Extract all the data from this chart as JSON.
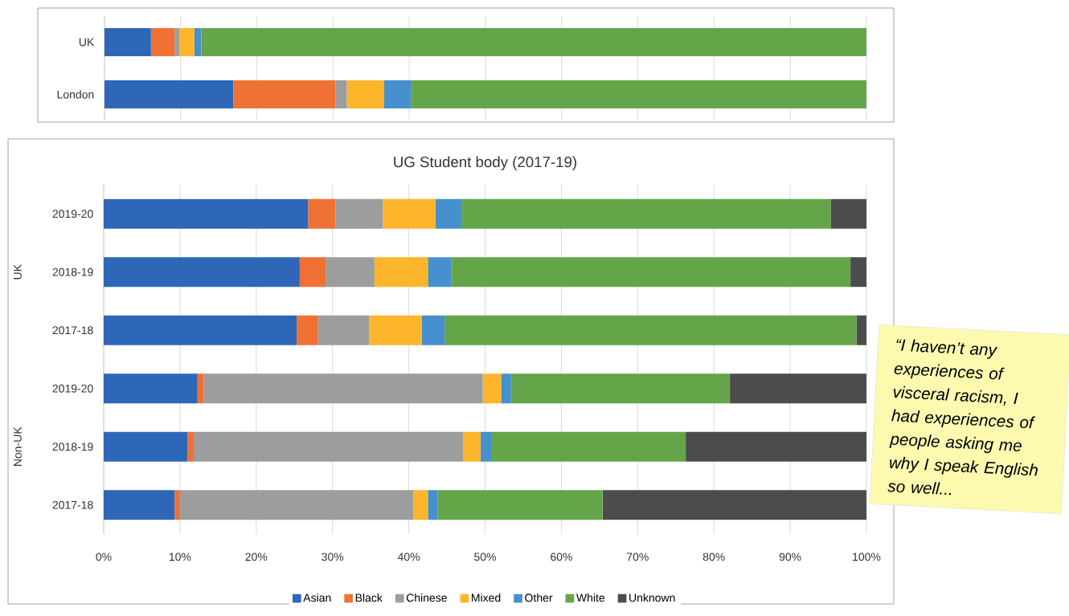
{
  "chart_data": [
    {
      "type": "bar",
      "orientation": "horizontal",
      "stacked": true,
      "categories": [
        "UK",
        "London"
      ],
      "xlim": [
        0,
        100
      ],
      "xticks": [
        0,
        10,
        20,
        30,
        40,
        50,
        60,
        70,
        80,
        90,
        100
      ],
      "tick_labels": "y",
      "grid": "x",
      "series": [
        {
          "color": "#2f67b8",
          "values": [
            6.1,
            16.9
          ]
        },
        {
          "color": "#ef7134",
          "values": [
            3.1,
            13.4
          ]
        },
        {
          "color": "#9d9d9d",
          "values": [
            0.6,
            1.5
          ]
        },
        {
          "color": "#fdb52b",
          "values": [
            2.0,
            4.9
          ]
        },
        {
          "color": "#4590cd",
          "values": [
            0.9,
            3.5
          ]
        },
        {
          "color": "#65a54a",
          "values": [
            87.3,
            59.8
          ]
        }
      ]
    },
    {
      "type": "bar",
      "orientation": "horizontal",
      "stacked": true,
      "title": "UG Student body (2017-19)",
      "categories": [
        "2019-20",
        "2018-19",
        "2017-18",
        "2019-20",
        "2018-19",
        "2017-18"
      ],
      "xlim": [
        0,
        100
      ],
      "xticks": [
        {
          "value": 0,
          "label": "0%"
        },
        {
          "value": 10,
          "label": "10%"
        },
        {
          "value": 20,
          "label": "20%"
        },
        {
          "value": 30,
          "label": "30%"
        },
        {
          "value": 40,
          "label": "40%"
        },
        {
          "value": 50,
          "label": "50%"
        },
        {
          "value": 60,
          "label": "60%"
        },
        {
          "value": 70,
          "label": "70%"
        },
        {
          "value": 80,
          "label": "80%"
        },
        {
          "value": 90,
          "label": "90%"
        },
        {
          "value": 100,
          "label": "100%"
        }
      ],
      "grid": "x",
      "legend": "bottom",
      "series": [
        {
          "name": "Asian",
          "color": "#2f67b8",
          "values": [
            26.8,
            25.7,
            25.3,
            12.3,
            11.0,
            9.3
          ]
        },
        {
          "name": "Black",
          "color": "#ef7134",
          "values": [
            3.6,
            3.4,
            2.8,
            0.8,
            0.8,
            0.7
          ]
        },
        {
          "name": "Chinese",
          "color": "#9d9d9d",
          "values": [
            6.2,
            6.4,
            6.7,
            36.6,
            35.3,
            30.6
          ]
        },
        {
          "name": "Mixed",
          "color": "#fdb52b",
          "values": [
            6.9,
            7.0,
            6.9,
            2.4,
            2.3,
            1.9
          ]
        },
        {
          "name": "Other",
          "color": "#4590cd",
          "values": [
            3.4,
            3.1,
            3.0,
            1.3,
            1.5,
            1.3
          ]
        },
        {
          "name": "White",
          "color": "#65a54a",
          "values": [
            48.4,
            52.3,
            54.0,
            28.7,
            25.4,
            21.6
          ]
        },
        {
          "name": "Unknown",
          "color": "#4c4c4c",
          "values": [
            4.7,
            2.1,
            1.3,
            17.9,
            23.7,
            34.6
          ]
        }
      ],
      "annotations": [
        "UK",
        "Non-UK",
        "“I haven’t any experiences of visceral racism, I had experiences of people asking me why I speak English so well..."
      ]
    }
  ]
}
